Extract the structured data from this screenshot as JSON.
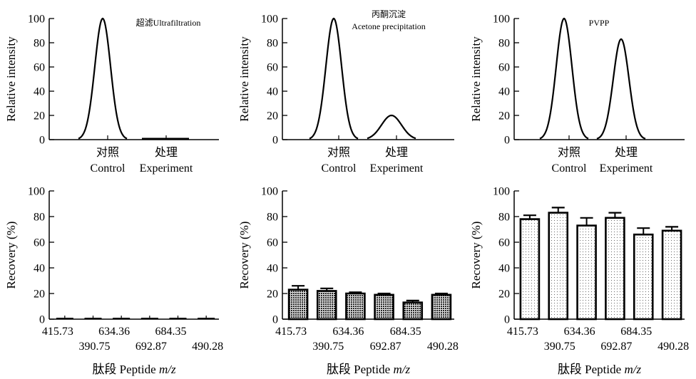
{
  "chart_data": [
    {
      "id": "ultrafiltration-intensity",
      "type": "line",
      "title": "超滤Ultrafiltration",
      "title_lines": [
        "超滤Ultrafiltration"
      ],
      "ylabel": "Relative intensity",
      "ylim": [
        0,
        100
      ],
      "yticks": [
        0,
        20,
        40,
        60,
        80,
        100
      ],
      "categories": [
        {
          "cn": "对照",
          "en": "Control"
        },
        {
          "cn": "处理",
          "en": "Experiment"
        }
      ],
      "peaks": [
        {
          "category": "Control",
          "height": 100
        },
        {
          "category": "Experiment",
          "height": 0.5,
          "shape": "flat"
        }
      ],
      "grid": false
    },
    {
      "id": "acetone-intensity",
      "type": "line",
      "title": "丙酮沉淀 Acetone precipitation",
      "title_lines": [
        "丙酮沉淀",
        "Acetone precipitation"
      ],
      "ylabel": "Relative intensity",
      "ylim": [
        0,
        100
      ],
      "yticks": [
        0,
        20,
        40,
        60,
        80,
        100
      ],
      "categories": [
        {
          "cn": "对照",
          "en": "Control"
        },
        {
          "cn": "处理",
          "en": "Experiment"
        }
      ],
      "peaks": [
        {
          "category": "Control",
          "height": 100
        },
        {
          "category": "Experiment",
          "height": 20
        }
      ],
      "grid": false
    },
    {
      "id": "pvpp-intensity",
      "type": "line",
      "title": "PVPP",
      "title_lines": [
        "PVPP"
      ],
      "ylabel": "Relative intensity",
      "ylim": [
        0,
        100
      ],
      "yticks": [
        0,
        20,
        40,
        60,
        80,
        100
      ],
      "categories": [
        {
          "cn": "对照",
          "en": "Control"
        },
        {
          "cn": "处理",
          "en": "Experiment"
        }
      ],
      "peaks": [
        {
          "category": "Control",
          "height": 100
        },
        {
          "category": "Experiment",
          "height": 83
        }
      ],
      "grid": false
    },
    {
      "id": "ultrafiltration-recovery",
      "type": "bar",
      "ylabel": "Recovery (%)",
      "xlabel": "肽段 Peptide m/z",
      "xlabel_parts": {
        "prefix": "肽段 Peptide ",
        "italic": "m/z"
      },
      "ylim": [
        0,
        100
      ],
      "yticks": [
        0,
        20,
        40,
        60,
        80,
        100
      ],
      "categories": [
        "415.73",
        "390.75",
        "634.36",
        "692.87",
        "684.35",
        "490.28"
      ],
      "values": [
        0.5,
        0.8,
        0.3,
        0.4,
        0.3,
        0.4
      ],
      "errors": [
        0.3,
        0.4,
        0.2,
        0.2,
        0.2,
        0.2
      ],
      "pattern": "none",
      "grid": false
    },
    {
      "id": "acetone-recovery",
      "type": "bar",
      "ylabel": "Recovery (%)",
      "xlabel": "肽段 Peptide m/z",
      "xlabel_parts": {
        "prefix": "肽段 Peptide ",
        "italic": "m/z"
      },
      "ylim": [
        0,
        100
      ],
      "yticks": [
        0,
        20,
        40,
        60,
        80,
        100
      ],
      "categories": [
        "415.73",
        "390.75",
        "634.36",
        "692.87",
        "684.35",
        "490.28"
      ],
      "values": [
        23,
        22,
        20,
        19,
        13,
        19
      ],
      "errors": [
        3,
        2,
        1,
        1,
        1.5,
        1
      ],
      "pattern": "dense",
      "grid": false
    },
    {
      "id": "pvpp-recovery",
      "type": "bar",
      "ylabel": "Recovery (%)",
      "xlabel": "肽段 Peptide m/z",
      "xlabel_parts": {
        "prefix": "肽段 Peptide ",
        "italic": "m/z"
      },
      "ylim": [
        0,
        100
      ],
      "yticks": [
        0,
        20,
        40,
        60,
        80,
        100
      ],
      "categories": [
        "415.73",
        "390.75",
        "634.36",
        "692.87",
        "684.35",
        "490.28"
      ],
      "values": [
        78,
        83,
        73,
        79,
        66,
        69
      ],
      "errors": [
        3,
        4,
        6,
        4,
        5,
        3
      ],
      "pattern": "sparse",
      "grid": false
    }
  ]
}
